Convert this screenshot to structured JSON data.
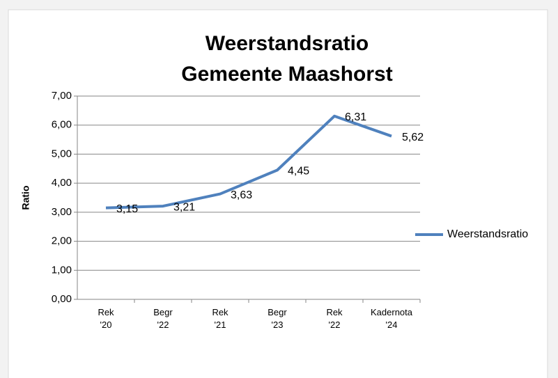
{
  "chart_data": {
    "type": "line",
    "title": [
      "Weerstandsratio",
      "Gemeente Maashorst"
    ],
    "y_label": "Ratio",
    "categories": [
      "Rek '20",
      "Begr '22",
      "Rek '21",
      "Begr '23",
      "Rek '22",
      "Kadernota '24"
    ],
    "series": [
      {
        "name": "Weerstandsratio",
        "color": "#4f81bd",
        "values": [
          3.15,
          3.21,
          3.63,
          4.45,
          6.31,
          5.62
        ],
        "value_labels": [
          "3,15",
          "3,21",
          "3,63",
          "4,45",
          "6,31",
          "5,62"
        ]
      }
    ],
    "ylim": [
      0,
      7
    ],
    "yticks": [
      {
        "value": 0,
        "label": "0,00"
      },
      {
        "value": 1,
        "label": "1,00"
      },
      {
        "value": 2,
        "label": "2,00"
      },
      {
        "value": 3,
        "label": "3,00"
      },
      {
        "value": 4,
        "label": "4,00"
      },
      {
        "value": 5,
        "label": "5,00"
      },
      {
        "value": 6,
        "label": "6,00"
      },
      {
        "value": 7,
        "label": "7,00"
      }
    ],
    "grid": true,
    "legend": "right"
  }
}
